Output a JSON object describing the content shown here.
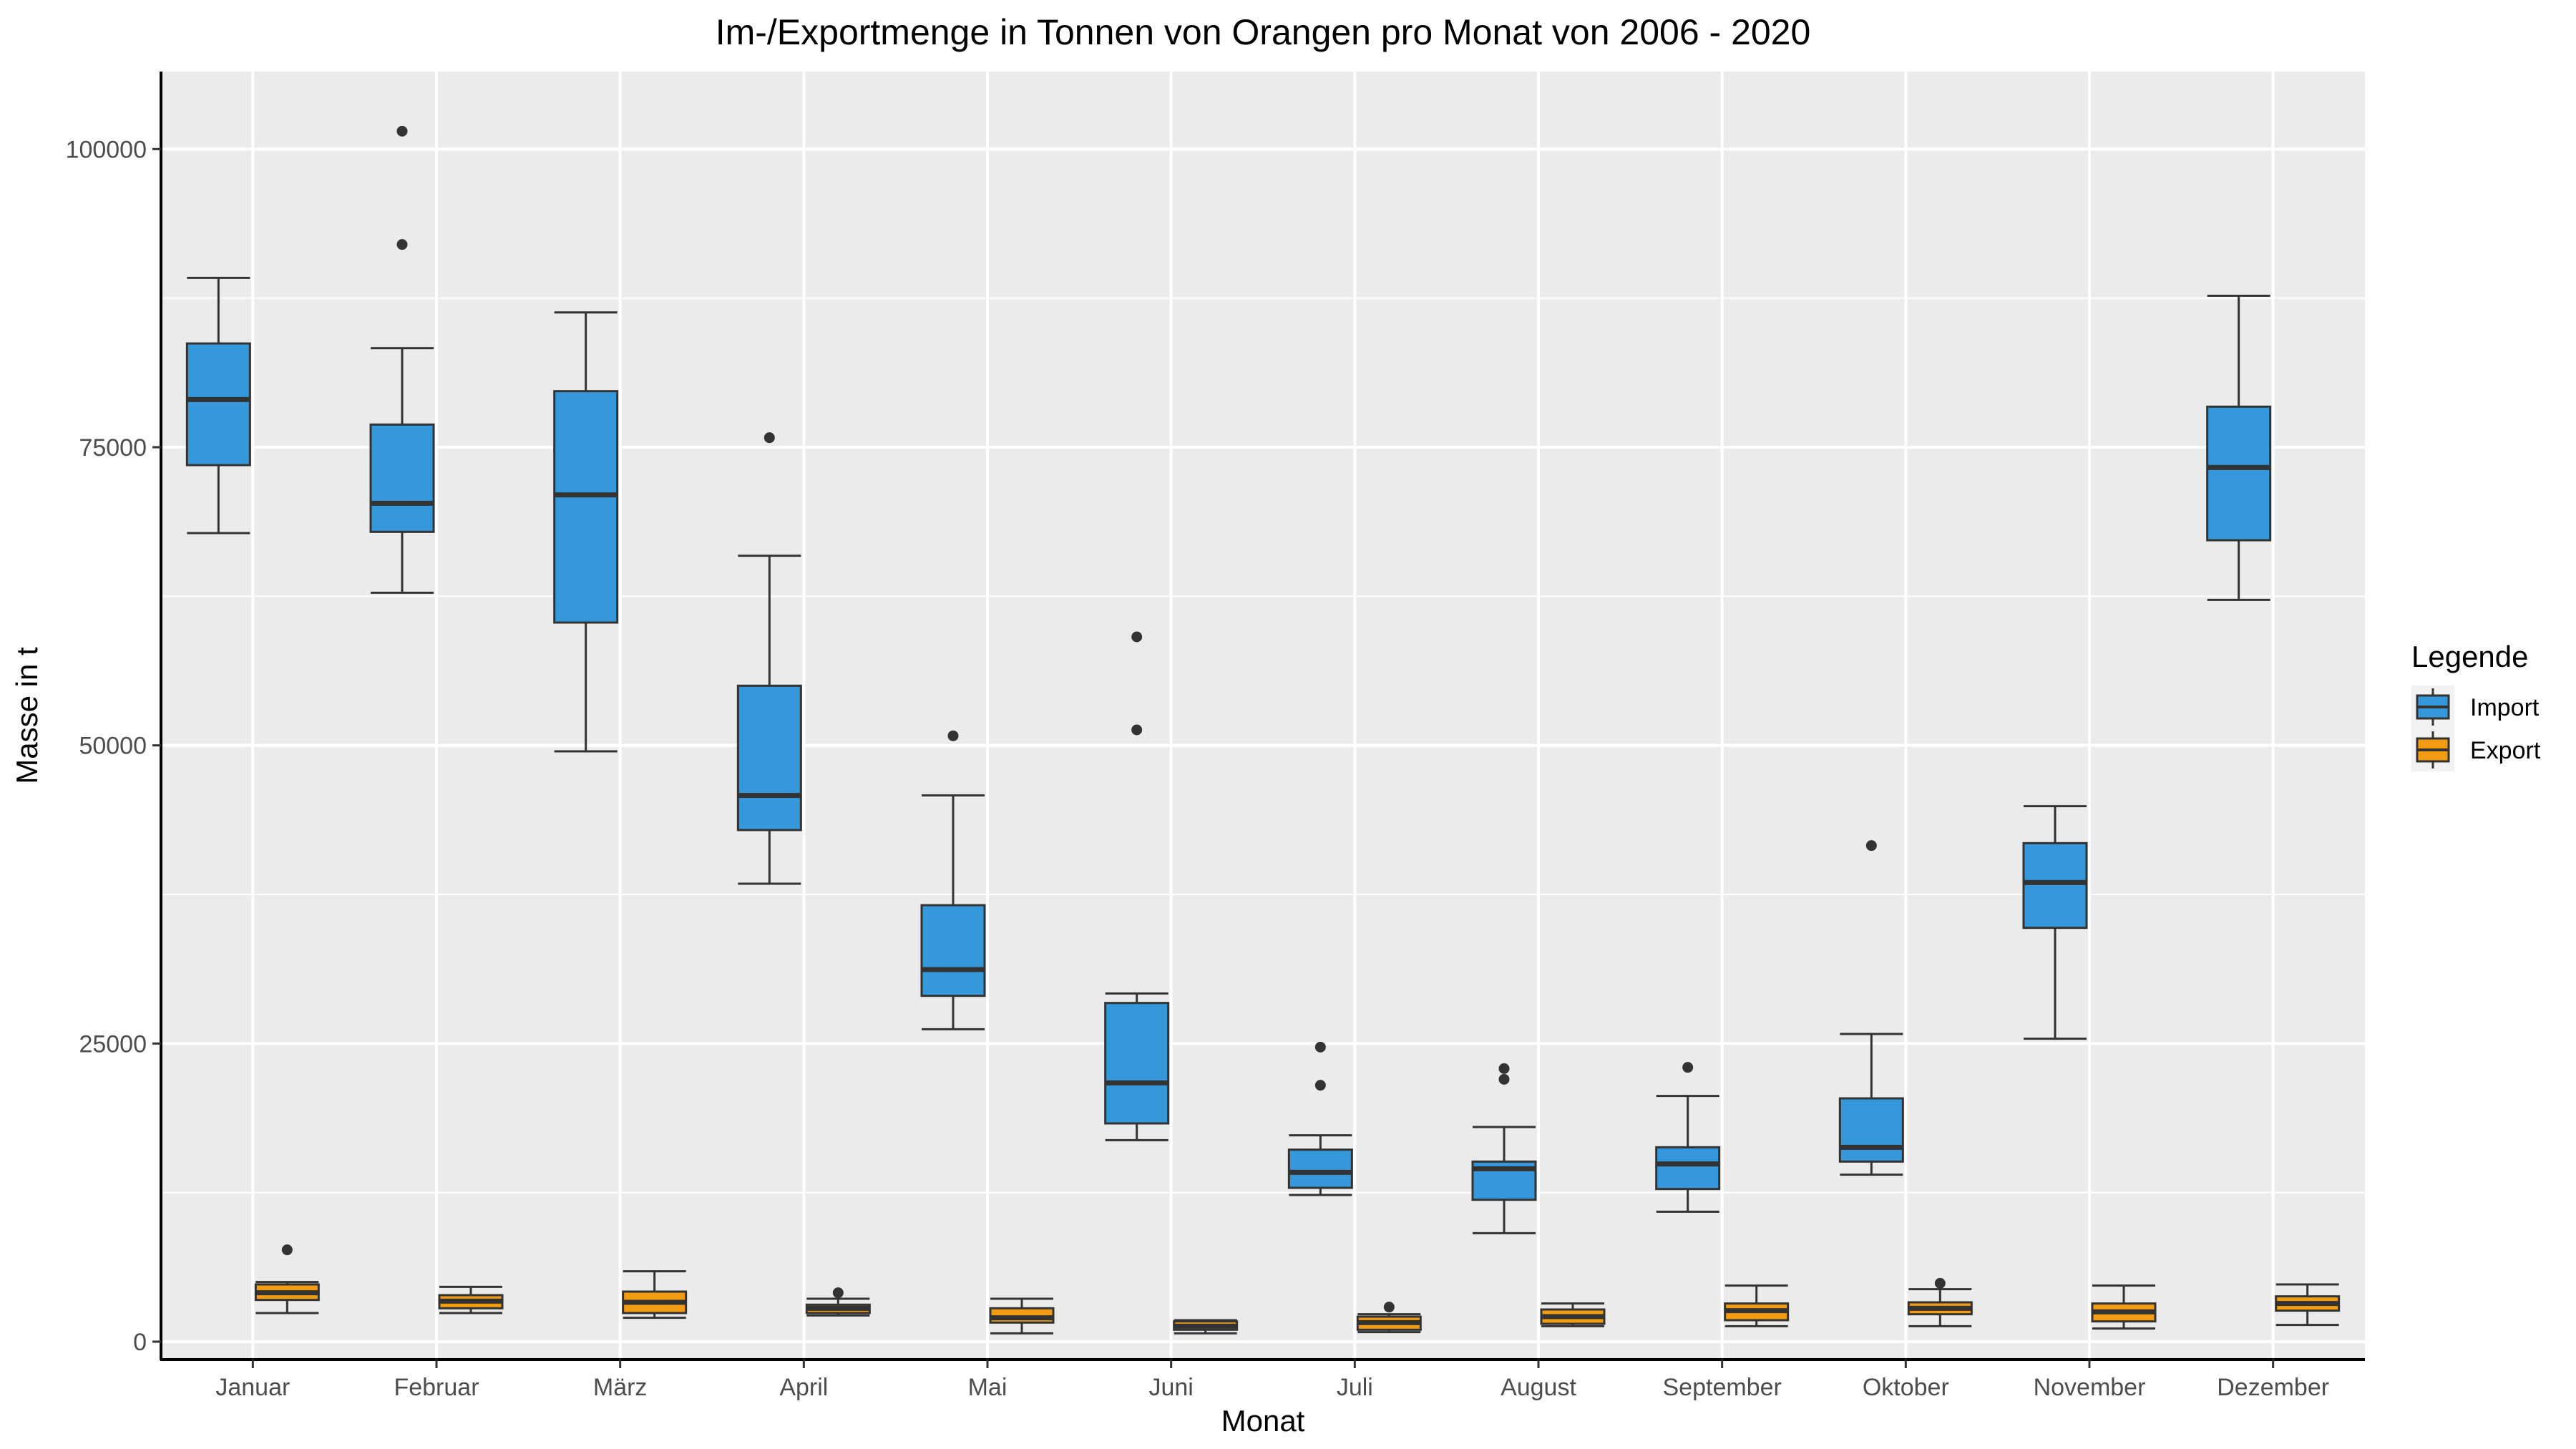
{
  "chart_data": {
    "type": "boxplot",
    "title": "Im-/Exportmenge in Tonnen von Orangen pro Monat von 2006 - 2020",
    "xlabel": "Monat",
    "ylabel": "Masse in t",
    "categories": [
      "Januar",
      "Februar",
      "März",
      "April",
      "Mai",
      "Juni",
      "Juli",
      "August",
      "September",
      "Oktober",
      "November",
      "Dezember"
    ],
    "y_ticks": [
      0,
      25000,
      50000,
      75000,
      100000
    ],
    "y_tick_labels": [
      "0",
      "25000",
      "50000",
      "75000",
      "100000"
    ],
    "ylim": [
      -1500,
      106500
    ],
    "grid": true,
    "legend": {
      "title": "Legende",
      "position": "right"
    },
    "colors": {
      "panel_bg": "#ebebeb",
      "grid": "#ffffff",
      "import": "#3498db",
      "export": "#f39c12",
      "stroke": "#333333"
    },
    "series": [
      {
        "name": "Import",
        "color": "#3498db",
        "boxes": [
          {
            "lower": 67800,
            "q1": 73500,
            "median": 79000,
            "q3": 83700,
            "upper": 89200,
            "outliers": []
          },
          {
            "lower": 62800,
            "q1": 67900,
            "median": 70300,
            "q3": 76900,
            "upper": 83300,
            "outliers": [
              101500,
              92000
            ]
          },
          {
            "lower": 49500,
            "q1": 60300,
            "median": 71000,
            "q3": 79700,
            "upper": 86300,
            "outliers": []
          },
          {
            "lower": 38400,
            "q1": 42900,
            "median": 45800,
            "q3": 55000,
            "upper": 65900,
            "outliers": [
              75800
            ]
          },
          {
            "lower": 26200,
            "q1": 29000,
            "median": 31200,
            "q3": 36600,
            "upper": 45800,
            "outliers": [
              50800
            ]
          },
          {
            "lower": 16900,
            "q1": 18300,
            "median": 21700,
            "q3": 28400,
            "upper": 29200,
            "outliers": [
              59100,
              51300
            ]
          },
          {
            "lower": 12300,
            "q1": 12900,
            "median": 14200,
            "q3": 16100,
            "upper": 17300,
            "outliers": [
              24700,
              21500
            ]
          },
          {
            "lower": 9100,
            "q1": 11900,
            "median": 14500,
            "q3": 15100,
            "upper": 18000,
            "outliers": [
              22900,
              22000
            ]
          },
          {
            "lower": 10900,
            "q1": 12800,
            "median": 14900,
            "q3": 16300,
            "upper": 20600,
            "outliers": [
              23000
            ]
          },
          {
            "lower": 14000,
            "q1": 15100,
            "median": 16300,
            "q3": 20400,
            "upper": 25800,
            "outliers": [
              41600
            ]
          },
          {
            "lower": 25400,
            "q1": 34700,
            "median": 38500,
            "q3": 41800,
            "upper": 44900,
            "outliers": []
          },
          {
            "lower": 62200,
            "q1": 67200,
            "median": 73300,
            "q3": 78400,
            "upper": 87700,
            "outliers": []
          }
        ]
      },
      {
        "name": "Export",
        "color": "#f39c12",
        "boxes": [
          {
            "lower": 2400,
            "q1": 3500,
            "median": 4100,
            "q3": 4800,
            "upper": 5000,
            "outliers": [
              7700
            ]
          },
          {
            "lower": 2400,
            "q1": 2800,
            "median": 3400,
            "q3": 3900,
            "upper": 4600,
            "outliers": []
          },
          {
            "lower": 2000,
            "q1": 2400,
            "median": 3300,
            "q3": 4200,
            "upper": 5900,
            "outliers": []
          },
          {
            "lower": 2200,
            "q1": 2400,
            "median": 2800,
            "q3": 3100,
            "upper": 3600,
            "outliers": [
              4100
            ]
          },
          {
            "lower": 700,
            "q1": 1600,
            "median": 2000,
            "q3": 2800,
            "upper": 3600,
            "outliers": []
          },
          {
            "lower": 700,
            "q1": 1000,
            "median": 1300,
            "q3": 1700,
            "upper": 1800,
            "outliers": []
          },
          {
            "lower": 800,
            "q1": 1000,
            "median": 1600,
            "q3": 2100,
            "upper": 2300,
            "outliers": [
              2900
            ]
          },
          {
            "lower": 1300,
            "q1": 1500,
            "median": 2100,
            "q3": 2700,
            "upper": 3200,
            "outliers": []
          },
          {
            "lower": 1300,
            "q1": 1800,
            "median": 2600,
            "q3": 3200,
            "upper": 4700,
            "outliers": []
          },
          {
            "lower": 1300,
            "q1": 2300,
            "median": 2800,
            "q3": 3300,
            "upper": 4400,
            "outliers": [
              4900
            ]
          },
          {
            "lower": 1100,
            "q1": 1700,
            "median": 2500,
            "q3": 3200,
            "upper": 4700,
            "outliers": []
          },
          {
            "lower": 1400,
            "q1": 2600,
            "median": 3200,
            "q3": 3800,
            "upper": 4800,
            "outliers": []
          }
        ]
      }
    ]
  }
}
